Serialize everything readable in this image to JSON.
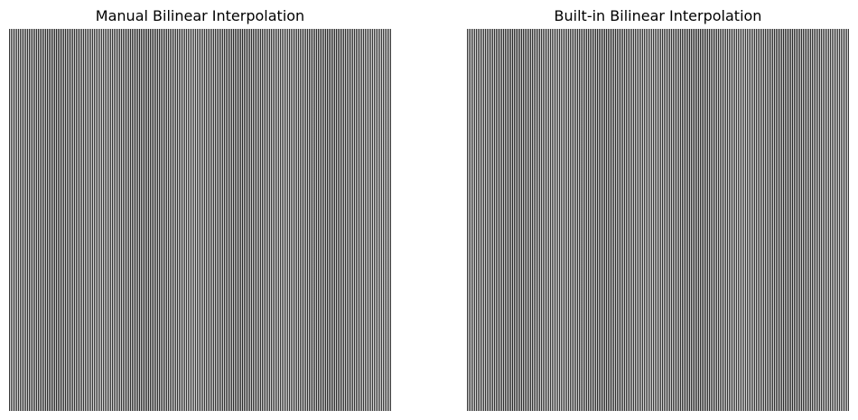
{
  "panels": [
    {
      "title": "Manual Bilinear Interpolation"
    },
    {
      "title": "Built-in Bilinear Interpolation"
    }
  ],
  "image": {
    "pattern": "fine vertical black and white stripes",
    "colors": {
      "dark_stripe": "#2a2a2a",
      "light_stripe": "#d8d8d8"
    }
  }
}
